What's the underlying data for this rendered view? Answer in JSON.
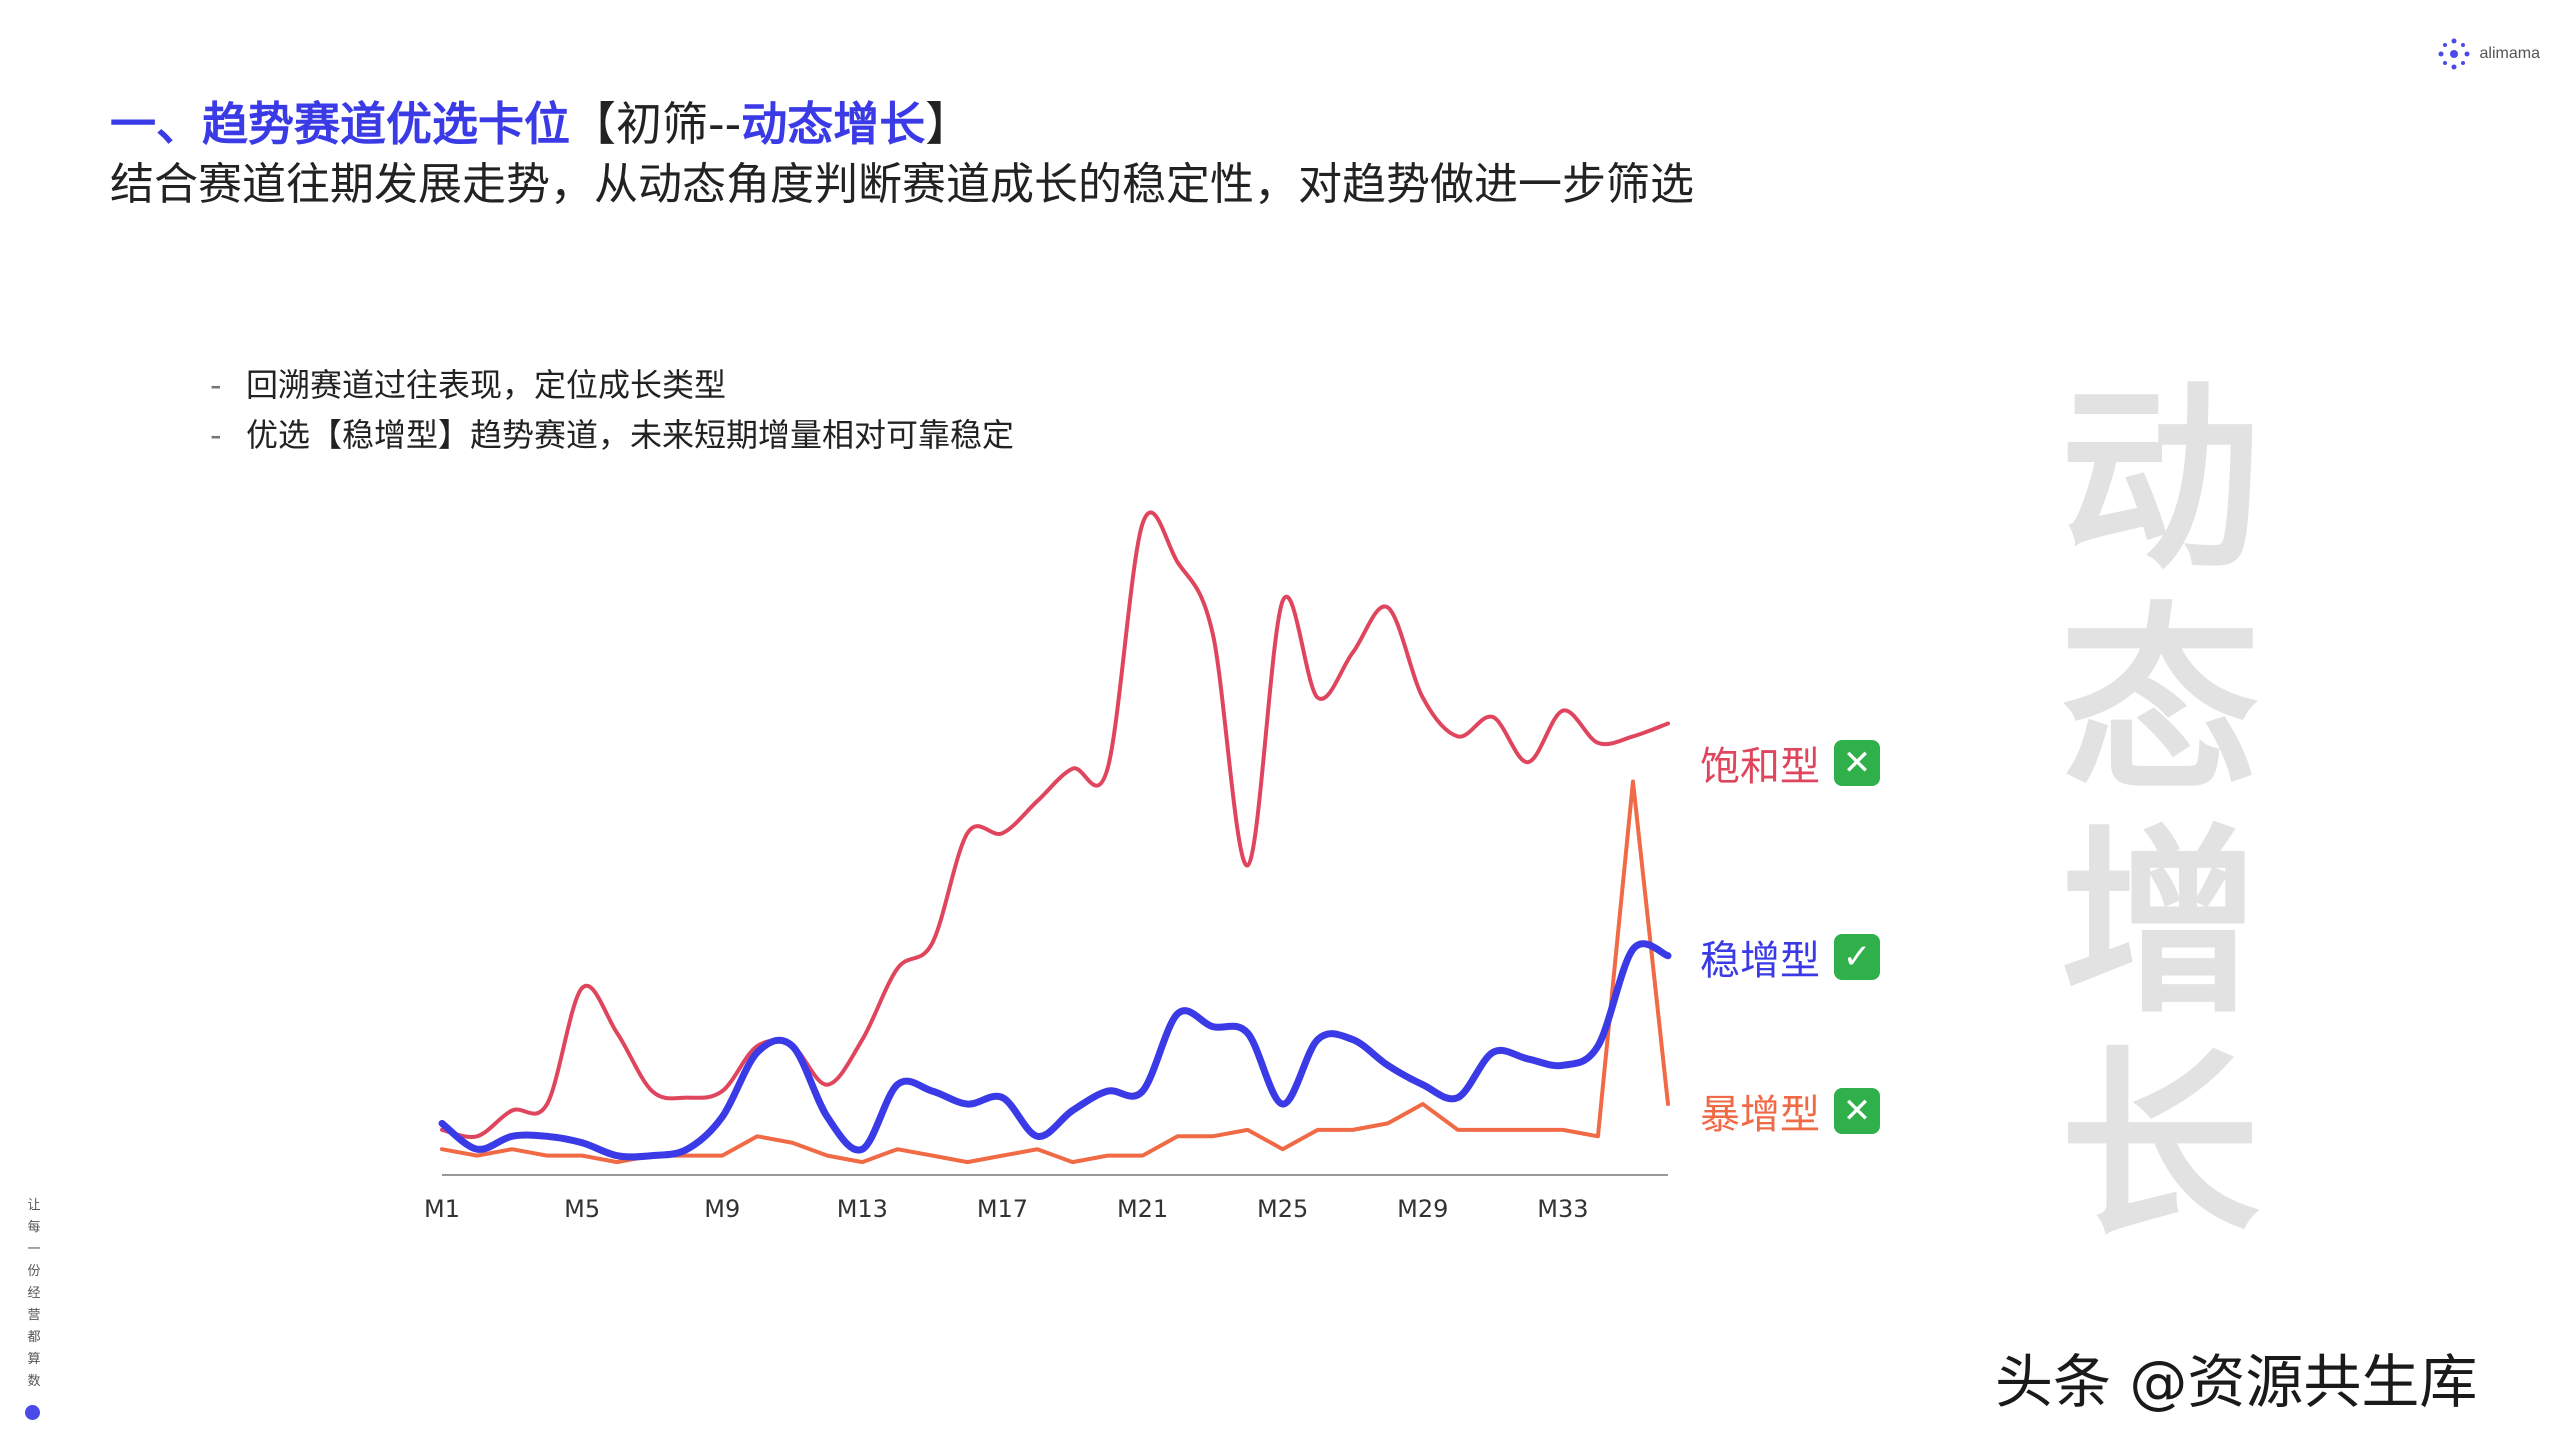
{
  "header": {
    "brand": "alimama",
    "title_main": "一、趋势赛道优选卡位",
    "title_bracket_open": "【初筛--",
    "title_highlight": "动态增长",
    "title_bracket_close": "】",
    "subtitle": "结合赛道往期发展走势，从动态角度判断赛道成长的稳定性，对趋势做进一步筛选"
  },
  "bullets": [
    {
      "dash": "-",
      "text": "回溯赛道过往表现，定位成长类型"
    },
    {
      "dash": "-",
      "text": "优选【稳增型】趋势赛道，未来短期增量相对可靠稳定"
    }
  ],
  "side_big_text": [
    "动",
    "态",
    "增",
    "长"
  ],
  "side_slogan": [
    "让",
    "每",
    "一",
    "份",
    "经",
    "营",
    "都",
    "算",
    "数"
  ],
  "watermark": "头条 @资源共生库",
  "colors": {
    "accent": "#3a3ae6",
    "saturated": "#e0455e",
    "steady": "#3a3ae6",
    "surge": "#f06a45"
  },
  "series_labels": [
    {
      "name": "饱和型",
      "status": "cross-mark",
      "status_glyph": "✕",
      "color": "#e0455e"
    },
    {
      "name": "稳增型",
      "status": "check-mark",
      "status_glyph": "✓",
      "color": "#3a3ae6"
    },
    {
      "name": "暴增型",
      "status": "cross-mark",
      "status_glyph": "✕",
      "color": "#f06a45"
    }
  ],
  "chart_data": {
    "type": "line",
    "title": "",
    "xlabel": "",
    "ylabel": "",
    "x": [
      "M1",
      "M2",
      "M3",
      "M4",
      "M5",
      "M6",
      "M7",
      "M8",
      "M9",
      "M10",
      "M11",
      "M12",
      "M13",
      "M14",
      "M15",
      "M16",
      "M17",
      "M18",
      "M19",
      "M20",
      "M21",
      "M22",
      "M23",
      "M24",
      "M25",
      "M26",
      "M27",
      "M28",
      "M29",
      "M30",
      "M31",
      "M32",
      "M33",
      "M34",
      "M35",
      "M36"
    ],
    "xtick_labels": [
      "M1",
      "M5",
      "M9",
      "M13",
      "M17",
      "M21",
      "M25",
      "M29",
      "M33"
    ],
    "ylim": [
      0,
      100
    ],
    "grid": false,
    "legend": "right, inline labels",
    "series": [
      {
        "name": "饱和型",
        "values": [
          7,
          6,
          10,
          11,
          29,
          22,
          13,
          12,
          13,
          20,
          20,
          14,
          21,
          32,
          36,
          53,
          53,
          58,
          63,
          63,
          101,
          95,
          84,
          48,
          89,
          74,
          81,
          88,
          74,
          68,
          71,
          64,
          72,
          67,
          68,
          70
        ]
      },
      {
        "name": "稳增型",
        "values": [
          8,
          4,
          6,
          6,
          5,
          3,
          3,
          4,
          9,
          19,
          20,
          9,
          4,
          14,
          13,
          11,
          12,
          6,
          10,
          13,
          13,
          25,
          23,
          22,
          11,
          21,
          21,
          17,
          14,
          12,
          19,
          18,
          17,
          20,
          35,
          34
        ]
      },
      {
        "name": "暴增型",
        "values": [
          4,
          3,
          4,
          3,
          3,
          2,
          3,
          3,
          3,
          6,
          5,
          3,
          2,
          4,
          3,
          2,
          3,
          4,
          2,
          3,
          3,
          6,
          6,
          7,
          4,
          7,
          7,
          8,
          11,
          7,
          7,
          7,
          7,
          6,
          61,
          11
        ]
      }
    ]
  }
}
